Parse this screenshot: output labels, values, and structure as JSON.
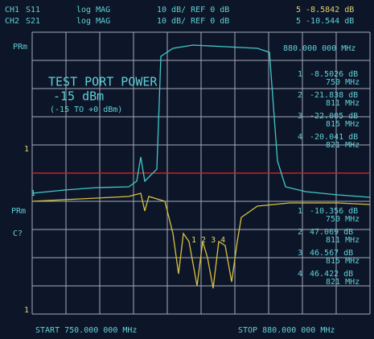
{
  "header": {
    "ch1": {
      "channel": "CH1",
      "param": "S11",
      "format": "log MAG",
      "scale": "10 dB/  REF 0 dB",
      "marker": "5  -8.5842 dB"
    },
    "ch2": {
      "channel": "CH2",
      "param": "S21",
      "format": "log MAG",
      "scale": "10 dB/  REF 0 dB",
      "marker": "5  -10.544 dB"
    }
  },
  "side": {
    "prm_top": "PRm",
    "prm_bottom": "PRm",
    "cal": "C?",
    "ref_top": "1",
    "ref_mid": "1",
    "ref_bottom": "1"
  },
  "marker_freq": "880.000 000 MHz",
  "power": {
    "title": "TEST PORT POWER",
    "value": "-15 dBm",
    "range": "(-15 TO +0 dBm)"
  },
  "markers_ch1": [
    {
      "num": "1",
      "value": "-8.5026 dB",
      "freq": "750 MHz"
    },
    {
      "num": "2",
      "value": "-21.838 dB",
      "freq": "811 MHz"
    },
    {
      "num": "3",
      "value": "-22.005 dB",
      "freq": "815 MHz"
    },
    {
      "num": "4",
      "value": "-20.041 dB",
      "freq": "821 MHz"
    }
  ],
  "markers_ch2": [
    {
      "num": "1",
      "value": "-10.356 dB",
      "freq": "750 MHz"
    },
    {
      "num": "2",
      "value": "47.069 dB",
      "freq": "811 MHz"
    },
    {
      "num": "3",
      "value": "46.567 dB",
      "freq": "815 MHz"
    },
    {
      "num": "4",
      "value": "46.422 dB",
      "freq": "821 MHz"
    }
  ],
  "trace_markers": "1 2 3 4",
  "footer": {
    "start": "START  750.000 000 MHz",
    "stop": "STOP  880.000 000 MHz"
  }
}
